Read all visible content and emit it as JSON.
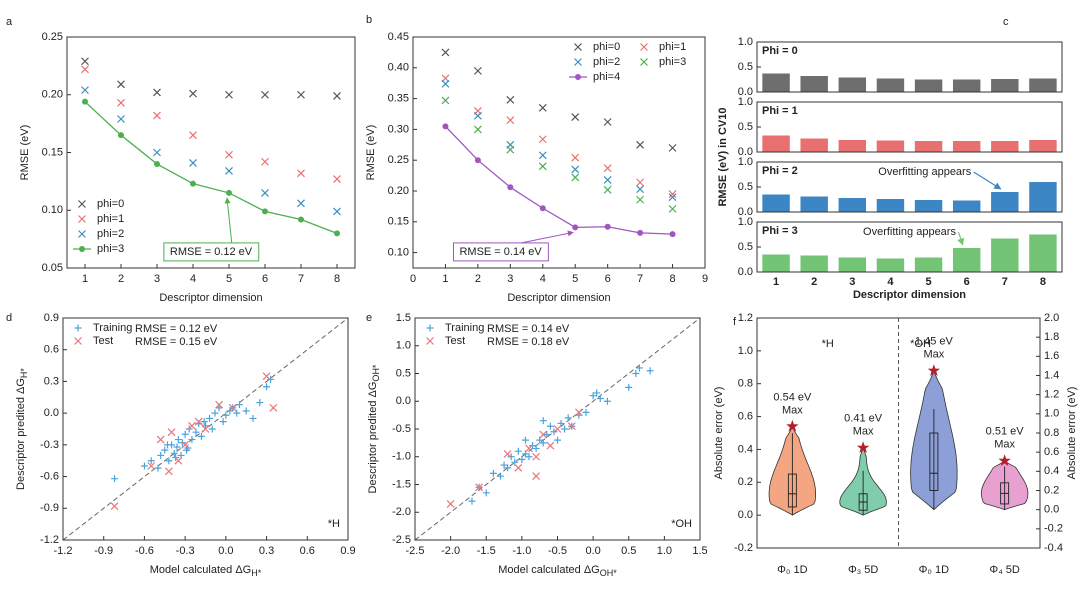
{
  "chart_data": [
    {
      "type": "scatter",
      "panel_label": "a",
      "x_label": "Descriptor dimension",
      "y_label": "RMSE (eV)",
      "x": [
        1,
        2,
        3,
        4,
        5,
        6,
        7,
        8
      ],
      "xlim": [
        0.5,
        8.5
      ],
      "xticks": [
        1,
        2,
        3,
        4,
        5,
        6,
        7,
        8
      ],
      "ylim": [
        0.05,
        0.25
      ],
      "yticks": [
        0.05,
        {
          "value": 0.1,
          "label": "0.10"
        },
        0.15,
        {
          "value": 0.2,
          "label": "0.20"
        },
        0.25
      ],
      "legend": "lower left",
      "legend_columns": 1,
      "annotation": "RMSE = 0.12 eV",
      "series": [
        {
          "name": "phi=0",
          "color": "#555555",
          "marker": "x",
          "line": false,
          "values": [
            0.229,
            0.209,
            0.202,
            0.201,
            0.2,
            0.2,
            0.2,
            0.199
          ]
        },
        {
          "name": "phi=1",
          "color": "#ee6f6f",
          "marker": "x",
          "line": false,
          "values": [
            0.222,
            0.193,
            0.182,
            0.165,
            0.148,
            0.142,
            0.132,
            0.127
          ]
        },
        {
          "name": "phi=2",
          "color": "#3a8fc0",
          "marker": "x",
          "line": false,
          "values": [
            0.204,
            0.179,
            0.15,
            0.141,
            0.134,
            0.115,
            0.106,
            0.099
          ]
        },
        {
          "name": "phi=3",
          "color": "#4caf50",
          "marker": "o",
          "line": true,
          "values": [
            0.194,
            0.165,
            0.14,
            0.123,
            0.115,
            0.099,
            0.092,
            0.08
          ]
        }
      ]
    },
    {
      "type": "scatter",
      "panel_label": "b",
      "x_label": "Descriptor dimension",
      "y_label": "RMSE (eV)",
      "x": [
        1,
        2,
        3,
        4,
        5,
        6,
        7,
        8
      ],
      "xlim": [
        0,
        9
      ],
      "xticks": [
        0,
        1,
        2,
        3,
        4,
        5,
        6,
        7,
        8,
        9
      ],
      "ylim": [
        0.075,
        0.45
      ],
      "yticks": [
        {
          "value": 0.1,
          "label": "0.10"
        },
        0.15,
        {
          "value": 0.2,
          "label": "0.20"
        },
        0.25,
        {
          "value": 0.3,
          "label": "0.30"
        },
        0.35,
        {
          "value": 0.4,
          "label": "0.40"
        },
        0.45
      ],
      "legend": "upper right",
      "legend_columns": 2,
      "annotation": "RMSE = 0.14 eV",
      "series": [
        {
          "name": "phi=0",
          "color": "#555555",
          "marker": "x",
          "line": false,
          "values": [
            0.425,
            0.395,
            0.348,
            0.335,
            0.32,
            0.312,
            0.275,
            0.27
          ]
        },
        {
          "name": "phi=1",
          "color": "#ee6f6f",
          "marker": "x",
          "line": false,
          "values": [
            0.383,
            0.33,
            0.315,
            0.284,
            0.254,
            0.237,
            0.214,
            0.195
          ]
        },
        {
          "name": "phi=2",
          "color": "#3a8fc0",
          "marker": "x",
          "line": false,
          "values": [
            0.374,
            0.322,
            0.275,
            0.258,
            0.235,
            0.218,
            0.203,
            0.19
          ]
        },
        {
          "name": "phi=3",
          "color": "#4caf50",
          "marker": "x",
          "line": false,
          "values": [
            0.347,
            0.3,
            0.267,
            0.24,
            0.222,
            0.202,
            0.186,
            0.171
          ]
        },
        {
          "name": "phi=4",
          "color": "#a156bf",
          "marker": "o",
          "line": true,
          "values": [
            0.305,
            0.25,
            0.206,
            0.172,
            0.141,
            0.142,
            0.132,
            0.13
          ]
        }
      ]
    },
    {
      "type": "bar",
      "panel_label": "c",
      "x_label": "Descriptor dimension",
      "y_label": "RMSE (eV) in CV10",
      "categories": [
        "1",
        "2",
        "3",
        "4",
        "5",
        "6",
        "7",
        "8"
      ],
      "ylim": [
        0,
        1
      ],
      "yticks": [
        {
          "value": 0,
          "label": "0.0"
        },
        0.5,
        {
          "value": 1,
          "label": "1.0"
        }
      ],
      "series": [
        {
          "name": "Phi = 0",
          "color": "#6e6e6e",
          "values": [
            0.37,
            0.32,
            0.29,
            0.27,
            0.25,
            0.25,
            0.26,
            0.27
          ]
        },
        {
          "name": "Phi = 1",
          "color": "#e87070",
          "values": [
            0.33,
            0.27,
            0.24,
            0.23,
            0.22,
            0.22,
            0.22,
            0.24
          ]
        },
        {
          "name": "Phi = 2",
          "color": "#3d86c6",
          "values": [
            0.35,
            0.31,
            0.28,
            0.26,
            0.24,
            0.23,
            0.4,
            0.6
          ],
          "note": "Overfitting appears"
        },
        {
          "name": "Phi = 3",
          "color": "#74c476",
          "values": [
            0.35,
            0.33,
            0.29,
            0.27,
            0.29,
            0.48,
            0.67,
            0.75
          ],
          "note": "Overfitting appears"
        }
      ]
    },
    {
      "type": "scatter",
      "panel_label": "d",
      "x_label": {
        "text": "Model calculated ΔG",
        "sub": "H*"
      },
      "y_label": {
        "text": "Descriptor predited ΔG",
        "sub": "H*"
      },
      "xlim": [
        -1.2,
        0.9
      ],
      "xticks": [
        -1.2,
        -0.9,
        -0.6,
        -0.3,
        {
          "value": 0,
          "label": "0.0"
        },
        0.3,
        0.6,
        0.9
      ],
      "ylim": [
        -1.2,
        0.9
      ],
      "yticks": [
        -1.2,
        -0.9,
        -0.6,
        -0.3,
        {
          "value": 0,
          "label": "0.0"
        },
        0.3,
        0.6,
        0.9
      ],
      "diagonal": true,
      "legend": "upper left",
      "legend_columns": 1,
      "note": "*H",
      "series": [
        {
          "name": "Training",
          "rmse": "RMSE = 0.12 eV",
          "color": "#4aa3df",
          "marker": "+",
          "line": false,
          "x": [
            -0.82,
            -0.6,
            -0.55,
            -0.5,
            -0.48,
            -0.45,
            -0.42,
            -0.4,
            -0.38,
            -0.36,
            -0.35,
            -0.33,
            -0.32,
            -0.3,
            -0.28,
            -0.27,
            -0.25,
            -0.22,
            -0.2,
            -0.18,
            -0.15,
            -0.12,
            -0.1,
            -0.08,
            -0.05,
            -0.02,
            0.0,
            0.03,
            0.05,
            0.08,
            0.1,
            0.15,
            0.2,
            0.25,
            0.3,
            0.33,
            -0.43,
            -0.37,
            -0.29,
            -0.16
          ],
          "values": [
            -0.62,
            -0.5,
            -0.45,
            -0.52,
            -0.4,
            -0.35,
            -0.45,
            -0.3,
            -0.38,
            -0.32,
            -0.25,
            -0.4,
            -0.28,
            -0.2,
            -0.33,
            -0.15,
            -0.25,
            -0.18,
            -0.1,
            -0.22,
            -0.12,
            -0.05,
            -0.15,
            0.0,
            0.05,
            -0.08,
            -0.02,
            0.02,
            0.05,
            0.0,
            0.08,
            0.02,
            -0.05,
            0.1,
            0.25,
            0.32,
            -0.3,
            -0.42,
            -0.35,
            -0.08
          ]
        },
        {
          "name": "Test",
          "rmse": "RMSE = 0.15 eV",
          "color": "#e8767a",
          "marker": "x",
          "line": false,
          "x": [
            -0.82,
            -0.55,
            -0.48,
            -0.4,
            -0.35,
            -0.3,
            -0.25,
            -0.2,
            -0.15,
            -0.05,
            0.05,
            0.35,
            0.3,
            -0.42
          ],
          "values": [
            -0.88,
            -0.5,
            -0.25,
            -0.18,
            -0.45,
            -0.3,
            -0.12,
            -0.08,
            -0.15,
            0.08,
            0.05,
            0.05,
            0.35,
            -0.55
          ]
        }
      ]
    },
    {
      "type": "scatter",
      "panel_label": "e",
      "x_label": {
        "text": "Model calculated ΔG",
        "sub": "OH*"
      },
      "y_label": {
        "text": "Descriptor predited ΔG",
        "sub": "OH*"
      },
      "xlim": [
        -2.5,
        1.5
      ],
      "xticks": [
        -2.5,
        {
          "value": -2,
          "label": "-2.0"
        },
        -1.5,
        {
          "value": -1,
          "label": "-1.0"
        },
        -0.5,
        {
          "value": 0,
          "label": "0.0"
        },
        0.5,
        {
          "value": 1,
          "label": "1.0"
        },
        1.5
      ],
      "ylim": [
        -2.5,
        1.5
      ],
      "yticks": [
        -2.5,
        {
          "value": -2,
          "label": "-2.0"
        },
        -1.5,
        {
          "value": -1,
          "label": "-1.0"
        },
        -0.5,
        {
          "value": 0,
          "label": "0.0"
        },
        0.5,
        {
          "value": 1,
          "label": "1.0"
        },
        1.5
      ],
      "diagonal": true,
      "legend": "upper left",
      "legend_columns": 1,
      "note": "*OH",
      "series": [
        {
          "name": "Training",
          "rmse": "RMSE = 0.14 eV",
          "color": "#4aa3df",
          "marker": "+",
          "line": false,
          "x": [
            -1.7,
            -1.6,
            -1.5,
            -1.4,
            -1.3,
            -1.2,
            -1.15,
            -1.1,
            -1.05,
            -1.0,
            -0.95,
            -0.9,
            -0.85,
            -0.8,
            -0.75,
            -0.7,
            -0.65,
            -0.6,
            -0.55,
            -0.5,
            -0.45,
            -0.4,
            -0.35,
            -0.3,
            -0.2,
            -0.1,
            0.0,
            0.05,
            0.1,
            0.2,
            0.5,
            0.6,
            0.65,
            0.8,
            -1.25,
            -0.95,
            -0.7
          ],
          "values": [
            -1.8,
            -1.55,
            -1.65,
            -1.3,
            -1.35,
            -1.2,
            -1.0,
            -1.1,
            -0.9,
            -1.05,
            -0.95,
            -1.0,
            -0.8,
            -0.85,
            -0.7,
            -0.75,
            -0.6,
            -0.45,
            -0.55,
            -0.7,
            -0.4,
            -0.5,
            -0.3,
            -0.45,
            -0.25,
            -0.2,
            0.1,
            0.15,
            0.05,
            0.0,
            0.25,
            0.5,
            0.6,
            0.55,
            -1.15,
            -0.7,
            -0.35
          ]
        },
        {
          "name": "Test",
          "rmse": "RMSE = 0.18 eV",
          "color": "#e8767a",
          "marker": "x",
          "line": false,
          "x": [
            -2.0,
            -1.6,
            -1.2,
            -1.05,
            -0.9,
            -0.8,
            -0.7,
            -0.6,
            -0.5,
            -0.3,
            -0.2,
            -0.8
          ],
          "values": [
            -1.85,
            -1.55,
            -0.95,
            -1.2,
            -0.85,
            -1.35,
            -0.6,
            -0.8,
            -0.5,
            -0.45,
            -0.2,
            -1.0
          ]
        }
      ]
    },
    {
      "type": "violin",
      "panel_label": "f",
      "y_label": "Absolute error (eV)",
      "y2_label": "Absolute error (eV)",
      "ylim": [
        -0.2,
        1.2
      ],
      "yticks": [
        -0.2,
        {
          "value": 0,
          "label": "0.0"
        },
        0.2,
        0.4,
        0.6,
        0.8,
        {
          "value": 1,
          "label": "1.0"
        },
        1.2
      ],
      "y2lim": [
        -0.4,
        2.0
      ],
      "y2ticks": [
        -0.4,
        -0.2,
        {
          "value": 0,
          "label": "0.0"
        },
        0.2,
        0.4,
        0.6,
        0.8,
        {
          "value": 1,
          "label": "1.0"
        },
        1.2,
        1.4,
        1.6,
        1.8,
        {
          "value": 2,
          "label": "2.0"
        }
      ],
      "sections": [
        "*H",
        "*OH"
      ],
      "groups": [
        {
          "label": "Φ₀ 1D",
          "axis": "y",
          "color": "#f4a582",
          "low": 0.0,
          "q1": 0.05,
          "median": 0.13,
          "q3": 0.25,
          "high": 0.5,
          "max": 0.54,
          "max_label": "0.54 eV",
          "max_text": "Max"
        },
        {
          "label": "Φ₃ 5D",
          "axis": "y",
          "color": "#7fcdaa",
          "low": 0.0,
          "q1": 0.03,
          "median": 0.08,
          "q3": 0.13,
          "high": 0.27,
          "max": 0.41,
          "max_label": "0.41 eV",
          "max_text": "Max"
        },
        {
          "label": "Φ₀ 1D",
          "axis": "y2",
          "color": "#8c9fd6",
          "low": 0.0,
          "q1": 0.2,
          "median": 0.38,
          "q3": 0.8,
          "high": 1.05,
          "max": 1.45,
          "max_label": "1.45 eV",
          "max_text": "Max"
        },
        {
          "label": "Φ₄ 5D",
          "axis": "y2",
          "color": "#e7a0cf",
          "low": 0.0,
          "q1": 0.06,
          "median": 0.17,
          "q3": 0.28,
          "high": 0.45,
          "max": 0.51,
          "max_label": "0.51 eV",
          "max_text": "Max"
        }
      ]
    }
  ]
}
